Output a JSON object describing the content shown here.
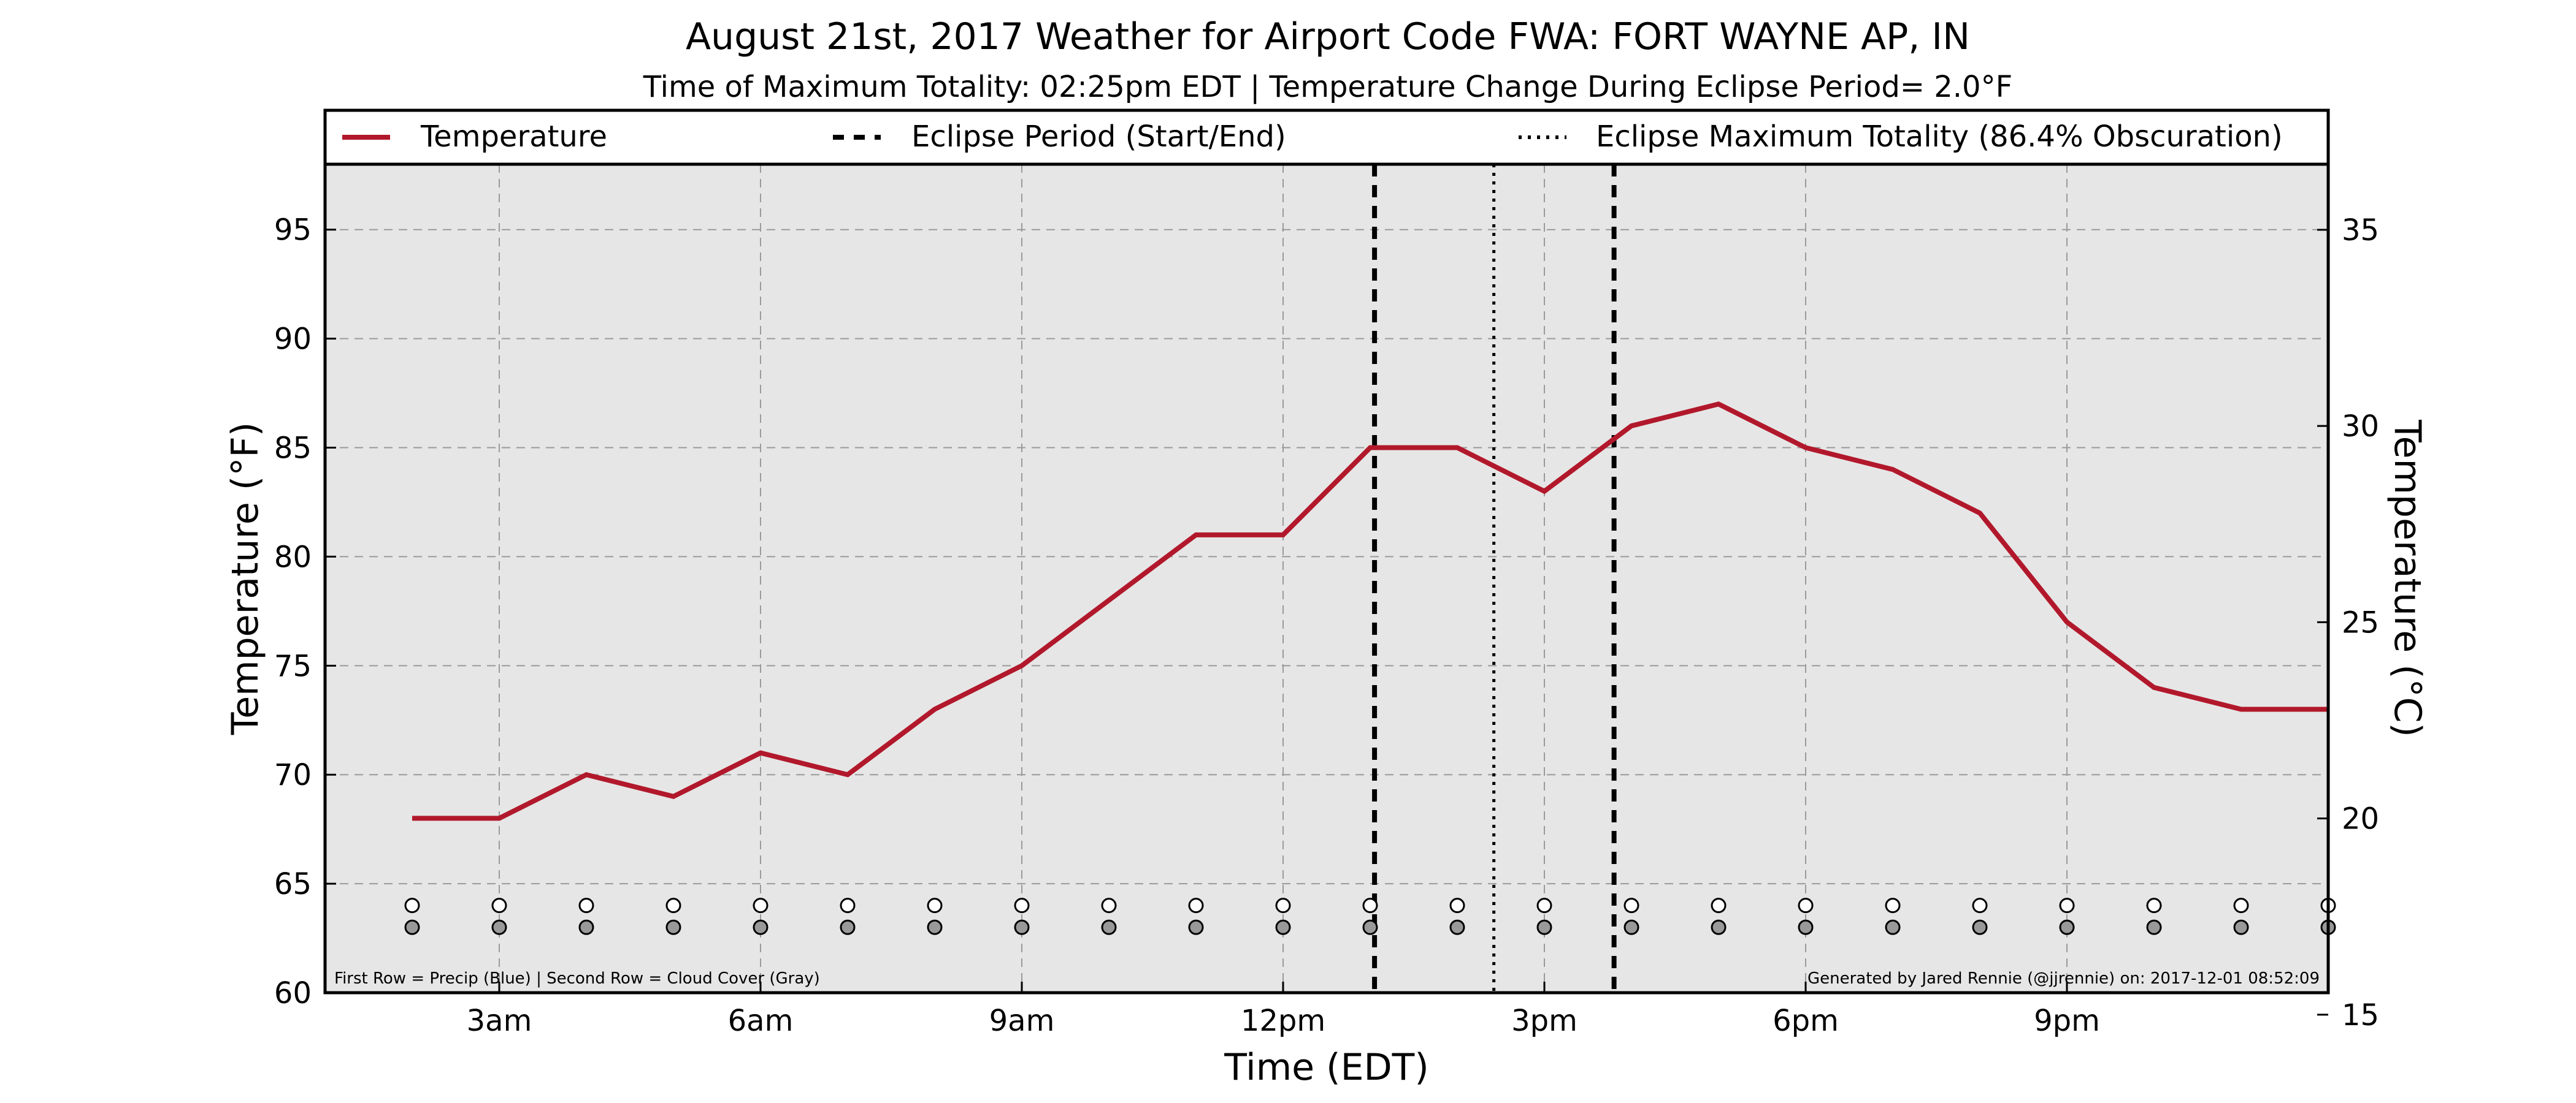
{
  "chart_data": {
    "type": "line",
    "title": "August 21st, 2017 Weather for Airport Code FWA: FORT WAYNE AP, IN",
    "subtitle": "Time of Maximum Totality: 02:25pm EDT | Temperature Change During Eclipse Period= 2.0°F",
    "xlabel": "Time (EDT)",
    "ylabel": "Temperature (°F)",
    "y2label": "Temperature (°C)",
    "xlim": [
      1,
      24
    ],
    "ylim": [
      60,
      98
    ],
    "y2lim": [
      15.56,
      36.67
    ],
    "grid": true,
    "background_color": "#e6e6e6",
    "x_ticks": [
      {
        "value": 3,
        "label": "3am"
      },
      {
        "value": 6,
        "label": "6am"
      },
      {
        "value": 9,
        "label": "9am"
      },
      {
        "value": 12,
        "label": "12pm"
      },
      {
        "value": 15,
        "label": "3pm"
      },
      {
        "value": 18,
        "label": "6pm"
      },
      {
        "value": 21,
        "label": "9pm"
      }
    ],
    "y_ticks": [
      "60",
      "65",
      "70",
      "75",
      "80",
      "85",
      "90",
      "95"
    ],
    "y_tick_values": [
      60,
      65,
      70,
      75,
      80,
      85,
      90,
      95
    ],
    "y2_ticks": [
      "15",
      "20",
      "25",
      "30",
      "35"
    ],
    "y2_tick_values": [
      15,
      20,
      25,
      30,
      35
    ],
    "series": [
      {
        "name": "Temperature",
        "color": "#b2182b",
        "x": [
          2,
          3,
          4,
          5,
          6,
          7,
          8,
          9,
          10,
          11,
          12,
          13,
          14,
          15,
          16,
          17,
          18,
          19,
          20,
          21,
          22,
          23,
          24
        ],
        "y": [
          68,
          68,
          70,
          69,
          71,
          70,
          73,
          75,
          78,
          81,
          81,
          85,
          85,
          83,
          86,
          87,
          85,
          84,
          82,
          77,
          74,
          73,
          73
        ]
      }
    ],
    "eclipse_start": 13.05,
    "eclipse_end": 15.8,
    "eclipse_max": 14.42,
    "legend": {
      "position": "top",
      "entries": [
        {
          "label": "Temperature",
          "style": "solid",
          "color": "#b2182b"
        },
        {
          "label": "Eclipse Period (Start/End)",
          "style": "dashed",
          "color": "#000000"
        },
        {
          "label": "Eclipse Maximum Totality (86.4% Obscuration)",
          "style": "dotted",
          "color": "#000000"
        }
      ]
    },
    "marker_rows": {
      "x": [
        2,
        3,
        4,
        5,
        6,
        7,
        8,
        9,
        10,
        11,
        12,
        13,
        14,
        15,
        16,
        17,
        18,
        19,
        20,
        21,
        22,
        23,
        24
      ],
      "precip_y": 64,
      "precip_color": "#ffffff",
      "cloud_y": 63,
      "cloud_color": "#999999"
    },
    "footnote_left": "First Row = Precip (Blue) | Second Row = Cloud Cover (Gray)",
    "footnote_right": "Generated by Jared Rennie (@jjrennie) on: 2017-12-01 08:52:09"
  }
}
